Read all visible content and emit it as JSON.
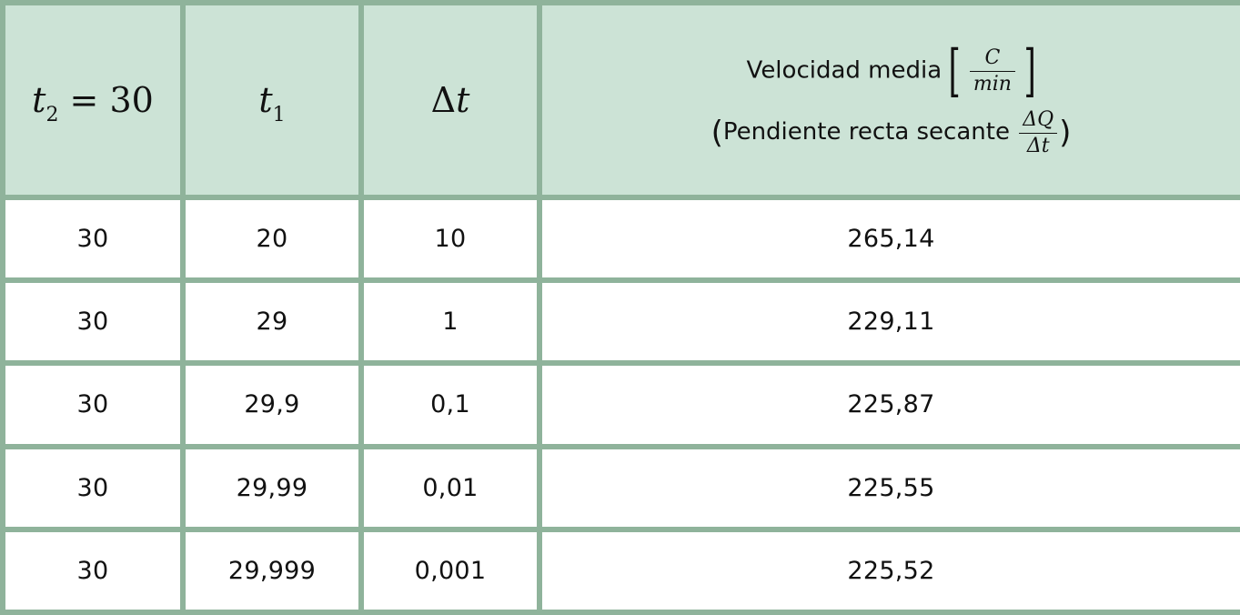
{
  "chart_data": {
    "type": "table",
    "columns": [
      {
        "lhs": "t",
        "sub": "2",
        "rhs": "= 30"
      },
      {
        "lhs": "t",
        "sub": "1"
      },
      {
        "delta": "Δ",
        "var": "t"
      },
      {
        "label": "Velocidad media",
        "unit_num": "C",
        "unit_den": "min",
        "paren_label": "Pendiente recta secante",
        "slope_num": "ΔQ",
        "slope_den": "Δt"
      }
    ],
    "rows": [
      [
        "30",
        "20",
        "10",
        "265,14"
      ],
      [
        "30",
        "29",
        "1",
        "229,11"
      ],
      [
        "30",
        "29,9",
        "0,1",
        "225,87"
      ],
      [
        "30",
        "29,99",
        "0,01",
        "225,55"
      ],
      [
        "30",
        "29,999",
        "0,001",
        "225,52"
      ]
    ]
  },
  "colors": {
    "header_bg": "#cce3d6",
    "border": "#8fb39b",
    "body_bg": "#ffffff"
  }
}
